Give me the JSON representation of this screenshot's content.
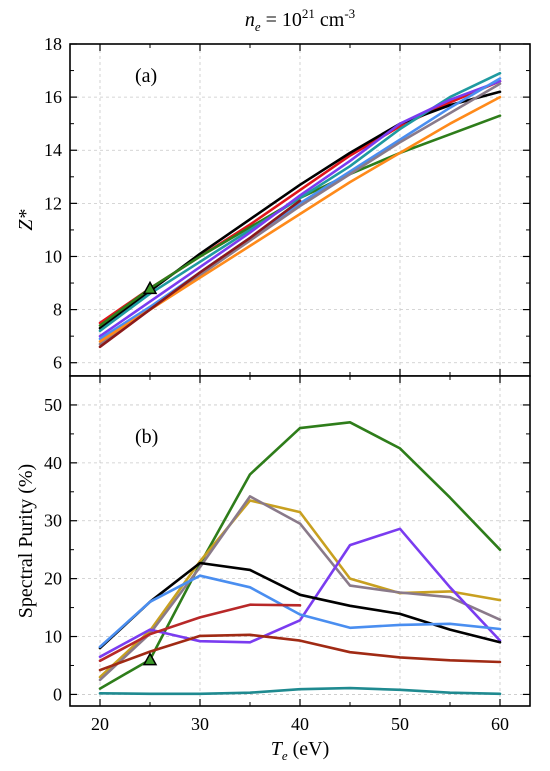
{
  "title": {
    "base": "n",
    "sub": "e",
    "eq": " = 10",
    "sup": "21",
    "unit": " cm",
    "unit_sup": "-3"
  },
  "chart_data": [
    {
      "panel": "(a)",
      "type": "line",
      "ylabel": "Z*",
      "xlim": [
        17,
        63
      ],
      "ylim": [
        5.5,
        18
      ],
      "xticks": [
        20,
        30,
        40,
        50,
        60
      ],
      "yticks": [
        6,
        8,
        10,
        12,
        14,
        16,
        18
      ],
      "grid": true,
      "series": [
        {
          "color": "#e0151b",
          "x": [
            20,
            25,
            30,
            35,
            40,
            45,
            50,
            55,
            60
          ],
          "y": [
            7.5,
            8.8,
            10.0,
            11.2,
            12.5,
            13.8,
            14.9,
            15.8,
            16.6
          ]
        },
        {
          "color": "#000000",
          "x": [
            20,
            25,
            30,
            35,
            40,
            45,
            50,
            55,
            60
          ],
          "y": [
            7.3,
            8.7,
            10.1,
            11.4,
            12.7,
            13.9,
            15.0,
            15.7,
            16.2
          ]
        },
        {
          "color": "#2e7d1a",
          "x": [
            20,
            25,
            30,
            35,
            40,
            45,
            50,
            55,
            60
          ],
          "y": [
            7.4,
            8.8,
            10.0,
            11.1,
            12.2,
            13.1,
            13.9,
            14.6,
            15.3
          ]
        },
        {
          "color": "#1f9aa0",
          "x": [
            20,
            25,
            30,
            35,
            40,
            45,
            50,
            55,
            60
          ],
          "y": [
            7.2,
            8.6,
            9.8,
            11.0,
            12.2,
            13.4,
            14.8,
            16.0,
            16.9
          ]
        },
        {
          "color": "#7a3cf0",
          "x": [
            20,
            25,
            30,
            35,
            40,
            45,
            50,
            55,
            60
          ],
          "y": [
            7.0,
            8.3,
            9.6,
            10.9,
            12.3,
            13.6,
            15.0,
            15.9,
            16.6
          ]
        },
        {
          "color": "#4a8ef0",
          "x": [
            20,
            25,
            30,
            35,
            40,
            45,
            50,
            55,
            60
          ],
          "y": [
            6.9,
            8.1,
            9.4,
            10.7,
            12.0,
            13.2,
            14.4,
            15.6,
            16.7
          ]
        },
        {
          "color": "#8a7a8a",
          "x": [
            20,
            25,
            30,
            35,
            40,
            45,
            50,
            55,
            60
          ],
          "y": [
            6.7,
            8.0,
            9.3,
            10.6,
            11.9,
            13.1,
            14.3,
            15.4,
            16.5
          ]
        },
        {
          "color": "#ff8a1a",
          "x": [
            20,
            25,
            30,
            35,
            40,
            45,
            50,
            55,
            60
          ],
          "y": [
            6.8,
            8.0,
            9.2,
            10.4,
            11.6,
            12.8,
            13.9,
            15.0,
            16.0
          ]
        },
        {
          "color": "#8b1a1a",
          "x": [
            20,
            25,
            30,
            35,
            40
          ],
          "y": [
            6.6,
            8.0,
            9.4,
            10.7,
            12.1
          ]
        }
      ],
      "marker": {
        "shape": "triangle",
        "x": 25,
        "y": 8.8,
        "fill": "#3c9a2a"
      }
    },
    {
      "panel": "(b)",
      "type": "line",
      "ylabel": "Spectral Purity (%)",
      "xlabel_base": "T",
      "xlabel_sub": "e",
      "xlabel_unit": " (eV)",
      "xlim": [
        17,
        63
      ],
      "ylim": [
        -2,
        55
      ],
      "xticks": [
        20,
        30,
        40,
        50,
        60
      ],
      "yticks": [
        0,
        10,
        20,
        30,
        40,
        50
      ],
      "grid": true,
      "series": [
        {
          "color": "#2e7d1a",
          "x": [
            20,
            25,
            30,
            35,
            40,
            45,
            50,
            55,
            60
          ],
          "y": [
            1.0,
            6.0,
            22.5,
            38.0,
            46.0,
            47.0,
            42.5,
            34.0,
            25.0
          ]
        },
        {
          "color": "#c8a020",
          "x": [
            20,
            25,
            30,
            35,
            40,
            45,
            50,
            55,
            60
          ],
          "y": [
            3.0,
            11.0,
            23.0,
            33.5,
            31.5,
            20.0,
            17.5,
            17.8,
            16.3
          ]
        },
        {
          "color": "#8a7a8a",
          "x": [
            20,
            25,
            30,
            35,
            40,
            45,
            50,
            55,
            60
          ],
          "y": [
            2.5,
            10.5,
            22.0,
            34.2,
            29.5,
            18.8,
            17.6,
            16.8,
            12.9
          ]
        },
        {
          "color": "#7a3cf0",
          "x": [
            20,
            25,
            30,
            35,
            40,
            45,
            50,
            55,
            60
          ],
          "y": [
            6.5,
            11.2,
            9.2,
            9.0,
            12.8,
            25.8,
            28.6,
            18.5,
            9.3
          ]
        },
        {
          "color": "#000000",
          "x": [
            20,
            25,
            30,
            35,
            40,
            45,
            50,
            55,
            60
          ],
          "y": [
            8.0,
            16.0,
            22.7,
            21.5,
            17.2,
            15.3,
            13.9,
            11.2,
            9.0
          ]
        },
        {
          "color": "#4a8ef0",
          "x": [
            20,
            25,
            30,
            35,
            40,
            45,
            50,
            55,
            60
          ],
          "y": [
            8.2,
            16.0,
            20.5,
            18.5,
            13.8,
            11.5,
            12.0,
            12.2,
            11.3
          ]
        },
        {
          "color": "#b82828",
          "x": [
            20,
            25,
            30,
            35,
            40
          ],
          "y": [
            5.8,
            10.4,
            13.3,
            15.5,
            15.4
          ]
        },
        {
          "color": "#a02a14",
          "x": [
            20,
            25,
            30,
            35,
            40,
            45,
            50,
            55,
            60
          ],
          "y": [
            4.2,
            7.4,
            10.1,
            10.3,
            9.3,
            7.3,
            6.4,
            5.9,
            5.6
          ]
        },
        {
          "color": "#1f8a90",
          "x": [
            20,
            25,
            30,
            35,
            40,
            45,
            50,
            55,
            60
          ],
          "y": [
            0.2,
            0.1,
            0.1,
            0.3,
            0.9,
            1.1,
            0.8,
            0.3,
            0.1
          ]
        }
      ],
      "marker": {
        "shape": "triangle",
        "x": 25,
        "y": 6.0,
        "fill": "#3c9a2a"
      }
    }
  ]
}
